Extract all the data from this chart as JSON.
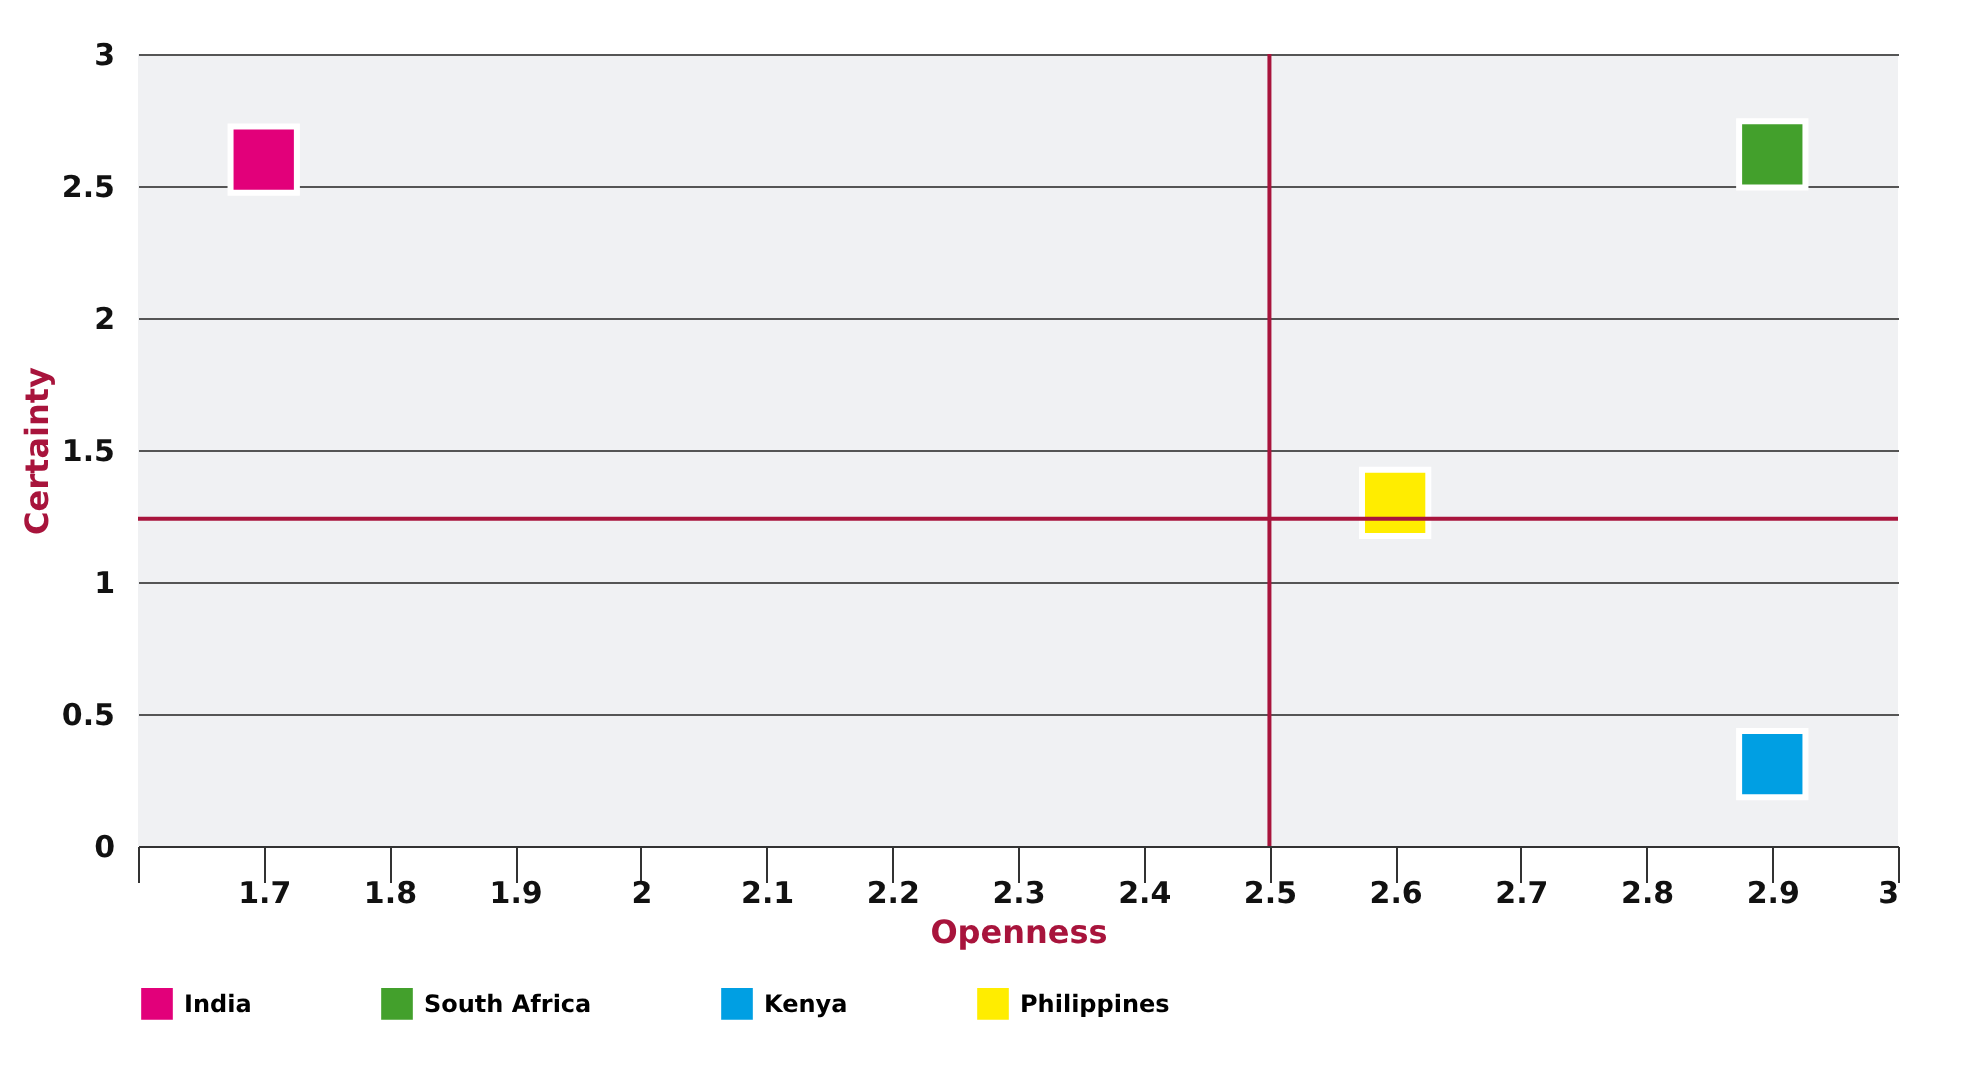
{
  "chart_data": {
    "type": "scatter",
    "xlabel": "Openness",
    "ylabel": "Certainty",
    "xlim": [
      1.6,
      3
    ],
    "xticks": [
      {
        "value": 1.6,
        "label": null
      },
      1.7,
      1.8,
      1.9,
      2,
      2.1,
      2.2,
      2.3,
      2.4,
      2.5,
      2.6,
      2.7,
      2.8,
      2.9,
      3
    ],
    "ylim": [
      0,
      3
    ],
    "yticks": [
      0,
      0.5,
      1,
      1.5,
      2,
      2.5,
      3
    ],
    "series": [
      {
        "name": "India",
        "color": "#e2007a",
        "x": [
          1.7
        ],
        "values": [
          2.6
        ]
      },
      {
        "name": "South Africa",
        "color": "#43a02c",
        "x": [
          2.9
        ],
        "values": [
          2.62
        ]
      },
      {
        "name": "Kenya",
        "color": "#009fe3",
        "x": [
          2.9
        ],
        "values": [
          0.31
        ]
      },
      {
        "name": "Philippines",
        "color": "#ffed00",
        "x": [
          2.6
        ],
        "values": [
          1.3
        ]
      }
    ],
    "ref_lines": [
      {
        "axis": "x",
        "value": 2.5,
        "color": "#a8143c"
      },
      {
        "axis": "y",
        "value": 1.24,
        "color": "#a8143c"
      }
    ],
    "marker": "square",
    "grid": "y",
    "legend": "bottom left"
  }
}
